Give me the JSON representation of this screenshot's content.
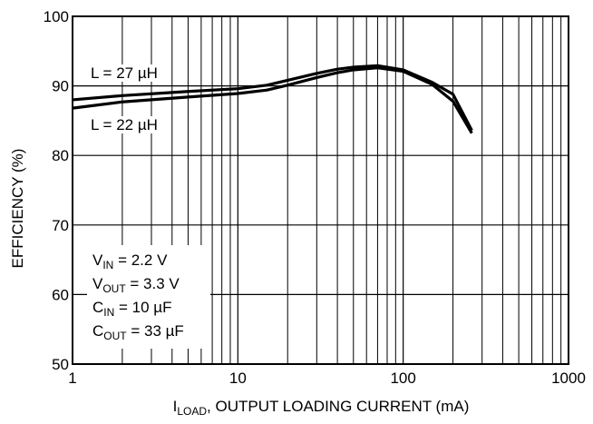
{
  "chart_data": {
    "type": "line",
    "y_label": "EFFICIENCY (%)",
    "x_label": {
      "main": "I",
      "sub": "LOAD",
      "rest": ", OUTPUT LOADING CURRENT (mA)"
    },
    "x_log": true,
    "grid": true,
    "color": "#000000",
    "xlim": [
      1,
      1000
    ],
    "xticks": [
      1,
      10,
      100,
      1000
    ],
    "ylim": [
      50,
      100
    ],
    "yticks": [
      50,
      60,
      70,
      80,
      90,
      100
    ],
    "x": [
      1,
      2,
      5,
      10,
      15,
      20,
      30,
      40,
      50,
      70,
      100,
      150,
      200,
      260
    ],
    "series": [
      {
        "name": "L = 27 µH",
        "values": [
          88.0,
          88.6,
          89.2,
          89.6,
          90.1,
          90.8,
          91.8,
          92.4,
          92.7,
          92.9,
          92.3,
          90.5,
          88.8,
          83.6
        ]
      },
      {
        "name": "L = 22 µH",
        "values": [
          86.8,
          87.7,
          88.4,
          88.9,
          89.4,
          90.1,
          91.2,
          91.9,
          92.3,
          92.6,
          92.1,
          90.2,
          87.8,
          83.2
        ]
      }
    ],
    "conditions": [
      {
        "main": "V",
        "sub": "IN",
        "rest": " = 2.2 V"
      },
      {
        "main": "V",
        "sub": "OUT",
        "rest": " = 3.3 V"
      },
      {
        "main": "C",
        "sub": "IN",
        "rest": " = 10 µF"
      },
      {
        "main": "C",
        "sub": "OUT",
        "rest": " = 33 µF"
      }
    ]
  }
}
